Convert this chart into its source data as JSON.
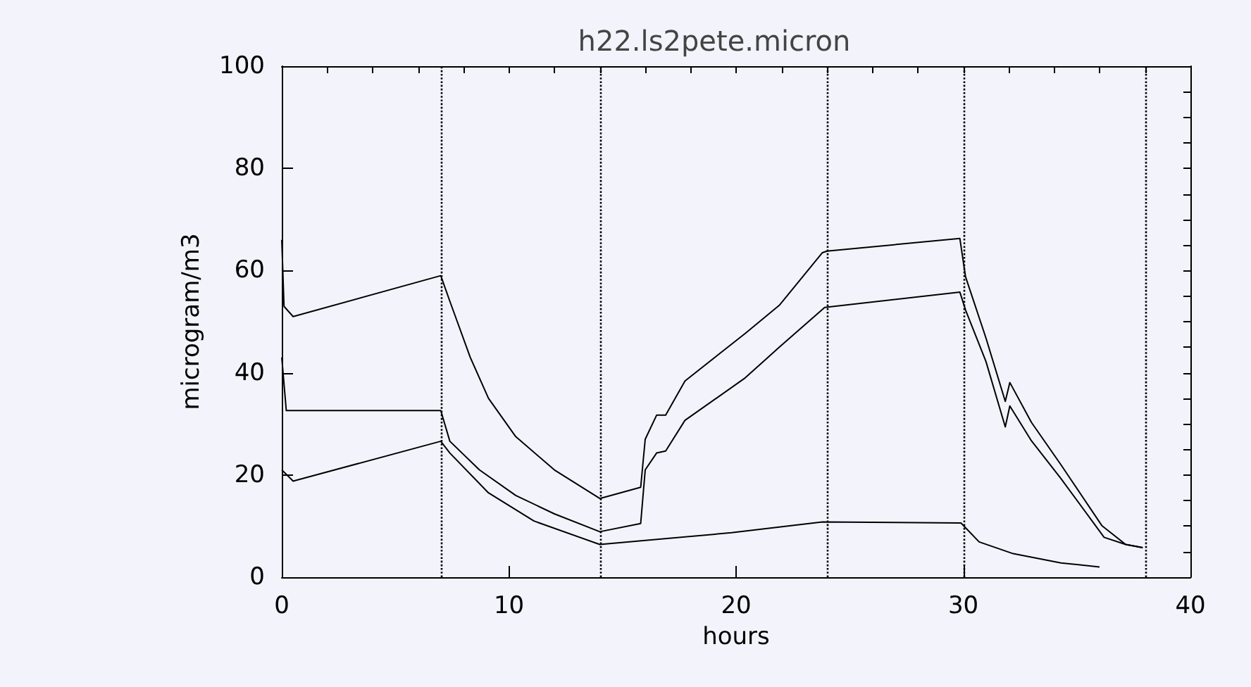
{
  "chart_data": {
    "type": "line",
    "title": "h22.ls2pete.micron",
    "xlabel": "hours",
    "ylabel": "microgram/m3",
    "xlim": [
      0,
      40
    ],
    "xticks": [
      0,
      10,
      20,
      30,
      40
    ],
    "ylim": [
      0,
      100
    ],
    "yticks": [
      0,
      20,
      40,
      60,
      80,
      100
    ],
    "grid": false,
    "marker": "none",
    "line_style": "solid",
    "ref_lines": [
      {
        "axis": "x",
        "value": 7,
        "line_style": "dotted",
        "color": "#000000"
      },
      {
        "axis": "x",
        "value": 14,
        "line_style": "dotted",
        "color": "#000000"
      },
      {
        "axis": "x",
        "value": 24,
        "line_style": "dotted",
        "color": "#000000"
      },
      {
        "axis": "x",
        "value": 30,
        "line_style": "dotted",
        "color": "#000000"
      },
      {
        "axis": "x",
        "value": 38,
        "line_style": "dotted",
        "color": "#000000"
      }
    ],
    "series": [
      {
        "color": "#000000",
        "x": [
          0,
          0.1,
          0.5,
          7,
          7.4,
          8.3,
          9.1,
          10.3,
          12,
          14,
          15.8,
          16,
          16.5,
          16.9,
          17.75,
          20.4,
          21.9,
          23.8,
          24,
          29.85,
          30.1,
          31,
          31.85,
          32.05,
          33,
          34.3,
          36.1,
          37.15,
          37.9
        ],
        "values": [
          66,
          53,
          51,
          59,
          54,
          43,
          35,
          27.5,
          21,
          15.4,
          17.6,
          27,
          31.7,
          31.7,
          38.4,
          47.7,
          53.2,
          63.5,
          63.8,
          66.3,
          58.8,
          46.8,
          34.4,
          38.1,
          30.3,
          22,
          10.1,
          6.4,
          5.8
        ]
      },
      {
        "color": "#000000",
        "x": [
          0,
          0.2,
          7,
          7.4,
          8.7,
          10.3,
          12,
          14,
          15.8,
          16,
          16.5,
          16.9,
          17.75,
          20.4,
          21.9,
          23.9,
          29.85,
          30.1,
          31,
          31.85,
          32.05,
          33,
          34.3,
          36.2,
          37.15,
          37.9
        ],
        "values": [
          43,
          32.6,
          32.6,
          26.6,
          21,
          16,
          12.4,
          8.9,
          10.5,
          21,
          24.3,
          24.7,
          30.7,
          39,
          45,
          52.8,
          55.8,
          52.3,
          42.2,
          29.4,
          33.5,
          26.7,
          19.3,
          7.8,
          6.4,
          5.8
        ]
      },
      {
        "color": "#000000",
        "x": [
          0,
          0.5,
          7,
          7.4,
          9.1,
          11.1,
          14,
          19.8,
          23.8,
          29.9,
          30.7,
          32.2,
          34.3,
          36
        ],
        "values": [
          21,
          18.8,
          26.6,
          24.3,
          16.5,
          11,
          6.4,
          8.7,
          10.8,
          10.6,
          6.9,
          4.6,
          2.8,
          2
        ]
      }
    ]
  }
}
